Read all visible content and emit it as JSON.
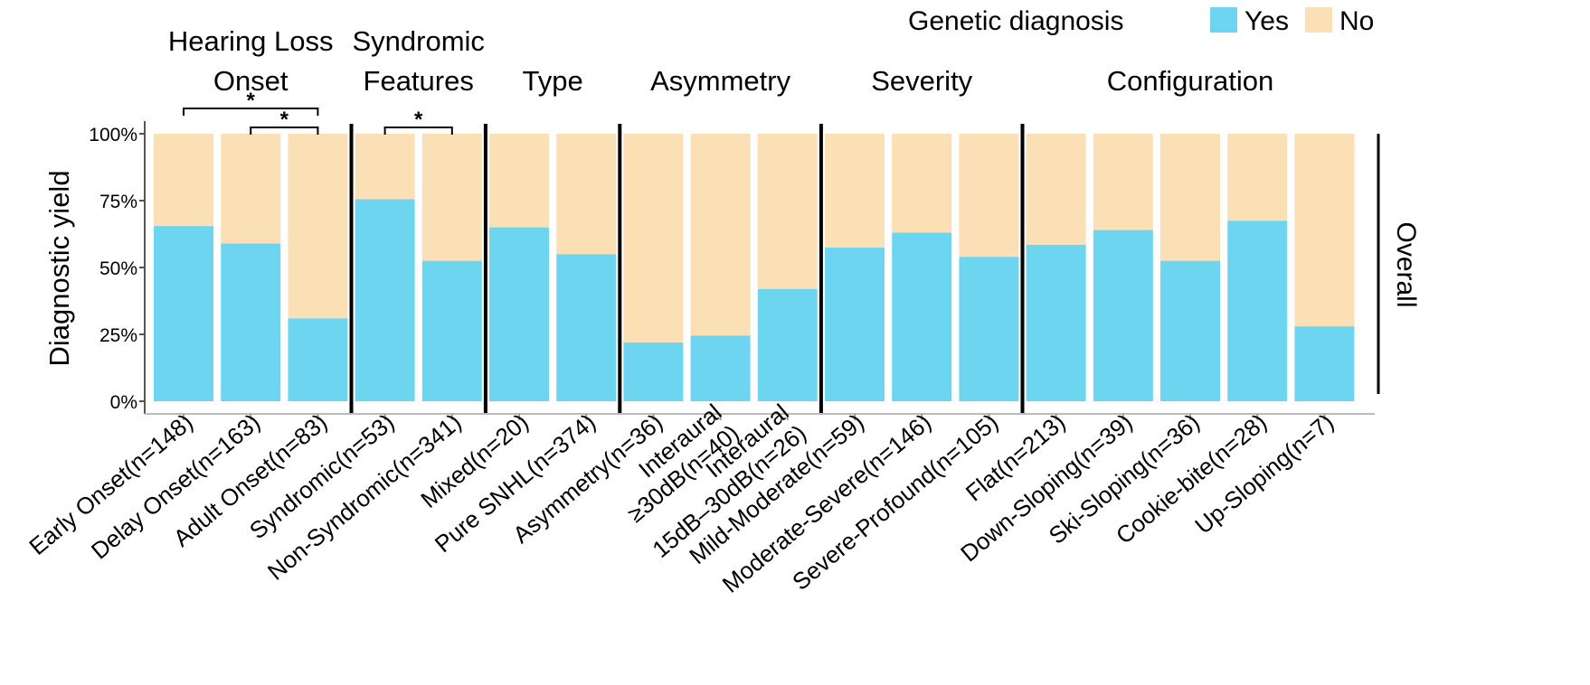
{
  "chart_data": {
    "type": "bar",
    "stacked": true,
    "ylabel": "Diagnostic yield",
    "ylim": [
      0,
      100
    ],
    "yticks": [
      "0%",
      "25%",
      "50%",
      "75%",
      "100%"
    ],
    "yticks_values": [
      0,
      25,
      50,
      75,
      100
    ],
    "legend": {
      "title": "Genetic diagnosis",
      "position": "top-right",
      "entries": [
        {
          "label": "Yes",
          "color": "#6dd5ef"
        },
        {
          "label": "No",
          "color": "#fbdfb5"
        }
      ]
    },
    "series": [
      {
        "name": "Yes",
        "color": "#6dd5ef",
        "values": [
          65.5,
          59,
          31,
          75.5,
          52.5,
          65,
          55,
          22,
          24.5,
          42,
          57.5,
          63,
          54,
          58.5,
          64,
          52.5,
          67.5,
          28
        ]
      },
      {
        "name": "No",
        "color": "#fbdfb5",
        "values": [
          34.5,
          41,
          69,
          24.5,
          47.5,
          35,
          45,
          78,
          75.5,
          58,
          42.5,
          37,
          46,
          41.5,
          36,
          47.5,
          32.5,
          72
        ]
      }
    ],
    "categories": [
      "Early Onset(n=148)",
      "Delay Onset(n=163)",
      "Adult Onset(n=83)",
      "Syndromic(n=53)",
      "Non-Syndromic(n=341)",
      "Mixed(n=20)",
      "Pure SNHL(n=374)",
      "Asymmetry(n=36)",
      "Interaural ≥30dB(n=40)",
      "Interaural 15dB–30dB(n=26)",
      "Mild-Moderate(n=59)",
      "Moderate-Severe(n=146)",
      "Severe-Profound(n=105)",
      "Flat(n=213)",
      "Down-Sloping(n=39)",
      "Ski-Sloping(n=36)",
      "Cookie-bite(n=28)",
      "Up-Sloping(n=7)"
    ],
    "category_display": [
      [
        "Early Onset(n=148)"
      ],
      [
        "Delay Onset(n=163)"
      ],
      [
        "Adult Onset(n=83)"
      ],
      [
        "Syndromic(n=53)"
      ],
      [
        "Non-Syndromic(n=341)"
      ],
      [
        "Mixed(n=20)"
      ],
      [
        "Pure SNHL(n=374)"
      ],
      [
        "Asymmetry(n=36)"
      ],
      [
        "Interaural",
        "≥30dB(n=40)"
      ],
      [
        "Interaural",
        "15dB–30dB(n=26)"
      ],
      [
        "Mild-Moderate(n=59)"
      ],
      [
        "Moderate-Severe(n=146)"
      ],
      [
        "Severe-Profound(n=105)"
      ],
      [
        "Flat(n=213)"
      ],
      [
        "Down-Sloping(n=39)"
      ],
      [
        "Ski-Sloping(n=36)"
      ],
      [
        "Cookie-bite(n=28)"
      ],
      [
        "Up-Sloping(n=7)"
      ]
    ],
    "groups": [
      {
        "label": [
          "Hearing Loss",
          "Onset"
        ],
        "start": 0,
        "end": 2
      },
      {
        "label": [
          "Syndromic",
          "Features"
        ],
        "start": 3,
        "end": 4
      },
      {
        "label": [
          "Type"
        ],
        "start": 5,
        "end": 6
      },
      {
        "label": [
          "Asymmetry"
        ],
        "start": 7,
        "end": 9
      },
      {
        "label": [
          "Severity"
        ],
        "start": 10,
        "end": 12
      },
      {
        "label": [
          "Configuration"
        ],
        "start": 13,
        "end": 17
      }
    ],
    "significance": [
      {
        "from": 0,
        "to": 2,
        "label": "*"
      },
      {
        "from": 1,
        "to": 2,
        "label": "*"
      },
      {
        "from": 3,
        "to": 4,
        "label": "*"
      }
    ],
    "side_label": "Overall"
  }
}
